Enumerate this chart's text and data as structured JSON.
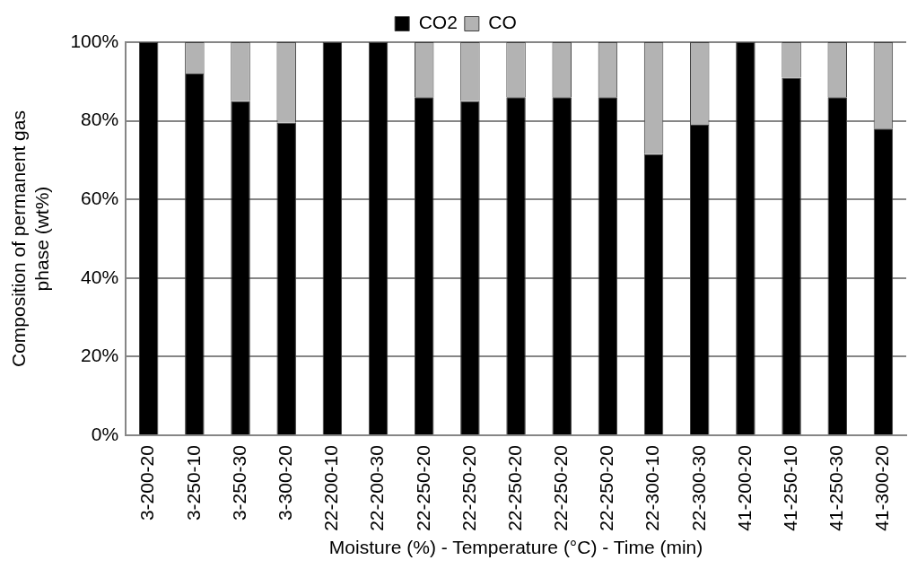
{
  "chart_data": {
    "type": "bar",
    "stacked": true,
    "xlabel": "Moisture (%) - Temperature (°C) - Time (min)",
    "ylabel": "Composition of permanent gas\nphase (wt%)",
    "categories": [
      "3-200-20",
      "3-250-10",
      "3-250-30",
      "3-300-20",
      "22-200-10",
      "22-200-30",
      "22-250-20",
      "22-250-20",
      "22-250-20",
      "22-250-20",
      "22-250-20",
      "22-300-10",
      "22-300-30",
      "41-200-20",
      "41-250-10",
      "41-250-30",
      "41-300-20"
    ],
    "series": [
      {
        "name": "CO2",
        "color": "#000000",
        "values": [
          100,
          92,
          85,
          79.5,
          100,
          100,
          86,
          85,
          86,
          86,
          86,
          71.5,
          79,
          100,
          91,
          86,
          78
        ]
      },
      {
        "name": "CO",
        "color": "#b3b3b3",
        "values": [
          0,
          8,
          15,
          20.5,
          0,
          0,
          14,
          15,
          14,
          14,
          14,
          28.5,
          21,
          0,
          9,
          14,
          22
        ]
      }
    ],
    "ylim": [
      0,
      100
    ],
    "yticks": [
      {
        "value": 0,
        "label": "0%"
      },
      {
        "value": 20,
        "label": "20%"
      },
      {
        "value": 40,
        "label": "40%"
      },
      {
        "value": 60,
        "label": "60%"
      },
      {
        "value": 80,
        "label": "80%"
      },
      {
        "value": 100,
        "label": "100%"
      }
    ],
    "grid": "y",
    "legend": "top"
  }
}
